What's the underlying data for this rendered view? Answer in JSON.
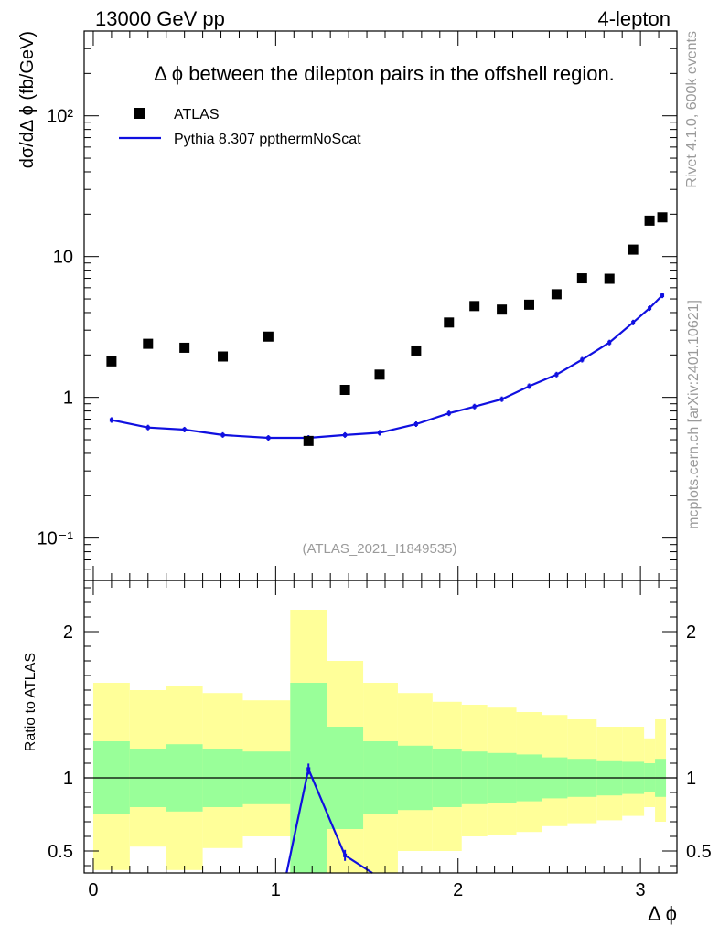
{
  "header": {
    "left_label": "13000 GeV pp",
    "right_label": "4-lepton"
  },
  "side_labels": {
    "rivet": "Rivet 4.1.0,  600k events",
    "mcplots": "mcplots.cern.ch [arXiv:2401.10621]"
  },
  "chart_data": [
    {
      "type": "scatter",
      "panel": "main",
      "title": "Δ ϕ between the dilepton pairs in the offshell region.",
      "ylabel": "dσ/dΔ ϕ (fb/GeV)",
      "xlabel": "Δ ϕ",
      "yscale": "log",
      "ylim": [
        0.05,
        400
      ],
      "xlim": [
        -0.05,
        3.2
      ],
      "y_ticks": [
        {
          "value": 0.1,
          "label": "10⁻¹"
        },
        {
          "value": 1,
          "label": "1"
        },
        {
          "value": 10,
          "label": "10"
        },
        {
          "value": 100,
          "label": "10²"
        }
      ],
      "watermark": "(ATLAS_2021_I1849535)",
      "legend": {
        "position": "top-left",
        "entries": [
          "ATLAS",
          "Pythia 8.307 ppthermNoScat"
        ]
      },
      "x": [
        0.1,
        0.3,
        0.5,
        0.71,
        0.96,
        1.18,
        1.38,
        1.57,
        1.77,
        1.95,
        2.09,
        2.24,
        2.39,
        2.54,
        2.68,
        2.83,
        2.96,
        3.05,
        3.12
      ],
      "series": [
        {
          "name": "ATLAS",
          "style": "markers",
          "color": "#000000",
          "values": [
            1.8,
            2.4,
            2.25,
            1.95,
            2.7,
            0.49,
            1.13,
            1.45,
            2.15,
            3.4,
            4.45,
            4.2,
            4.55,
            5.4,
            7.0,
            6.95,
            11.2,
            18.0,
            19.0
          ]
        },
        {
          "name": "Pythia 8.307 ppthermNoScat",
          "style": "line",
          "color": "#1010e0",
          "values": [
            0.69,
            0.61,
            0.59,
            0.54,
            0.515,
            0.515,
            0.54,
            0.56,
            0.645,
            0.77,
            0.86,
            0.97,
            1.2,
            1.45,
            1.85,
            2.45,
            3.4,
            4.3,
            5.3
          ]
        }
      ]
    },
    {
      "type": "line",
      "panel": "ratio",
      "ylabel": "Ratio to ATLAS",
      "xlabel": "Δ ϕ",
      "ylim": [
        0.35,
        2.35
      ],
      "xlim": [
        -0.05,
        3.2
      ],
      "x_ticks": [
        "0",
        "1",
        "2",
        "3"
      ],
      "y_ticks": [
        "0.5",
        "1",
        "2"
      ],
      "reference_line": 1,
      "bands": {
        "edges": [
          0.0,
          0.2,
          0.4,
          0.6,
          0.82,
          1.08,
          1.28,
          1.48,
          1.67,
          1.86,
          2.02,
          2.16,
          2.32,
          2.46,
          2.6,
          2.76,
          2.9,
          3.02,
          3.08,
          3.14
        ],
        "green_low": [
          0.75,
          0.8,
          0.77,
          0.8,
          0.82,
          0.35,
          0.65,
          0.75,
          0.78,
          0.8,
          0.82,
          0.83,
          0.84,
          0.86,
          0.87,
          0.88,
          0.89,
          0.9,
          0.87
        ],
        "green_high": [
          1.25,
          1.2,
          1.23,
          1.2,
          1.18,
          1.65,
          1.35,
          1.25,
          1.22,
          1.2,
          1.18,
          1.17,
          1.16,
          1.14,
          1.13,
          1.12,
          1.11,
          1.1,
          1.13
        ],
        "yellow_low": [
          0.37,
          0.53,
          0.37,
          0.52,
          0.6,
          0.35,
          0.35,
          0.35,
          0.5,
          0.5,
          0.6,
          0.61,
          0.63,
          0.67,
          0.69,
          0.71,
          0.74,
          0.8,
          0.7
        ],
        "yellow_high": [
          1.65,
          1.6,
          1.63,
          1.58,
          1.53,
          2.15,
          1.8,
          1.65,
          1.58,
          1.52,
          1.5,
          1.48,
          1.45,
          1.43,
          1.4,
          1.35,
          1.35,
          1.27,
          1.4
        ]
      },
      "series": [
        {
          "name": "Pythia 8.307 ppthermNoScat / ATLAS",
          "color": "#1010e0",
          "x": [
            1.06,
            1.18,
            1.38,
            1.53
          ],
          "values": [
            0.35,
            1.06,
            0.47,
            0.35
          ]
        }
      ]
    }
  ]
}
